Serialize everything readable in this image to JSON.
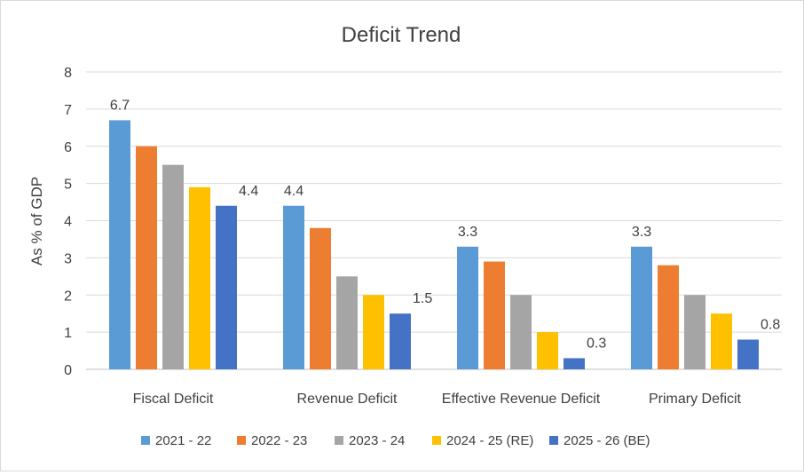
{
  "chart_data": {
    "type": "bar",
    "title": "Deficit Trend",
    "xlabel": "",
    "ylabel": "As % of GDP",
    "ylim": [
      0,
      8
    ],
    "yticks": [
      "0",
      "1",
      "2",
      "3",
      "4",
      "5",
      "6",
      "7",
      "8"
    ],
    "grid": true,
    "legend_position": "bottom",
    "categories": [
      "Fiscal Deficit",
      "Revenue Deficit",
      "Effective Revenue Deficit",
      "Primary Deficit"
    ],
    "series": [
      {
        "name": "2021 - 22",
        "color": "#5b9bd5",
        "values": [
          6.7,
          4.4,
          3.3,
          3.3
        ],
        "labels": [
          "6.7",
          "4.4",
          "3.3",
          "3.3"
        ]
      },
      {
        "name": "2022 - 23",
        "color": "#ed7d31",
        "values": [
          6.0,
          3.8,
          2.9,
          2.8
        ],
        "labels": [
          "",
          "",
          "",
          ""
        ]
      },
      {
        "name": "2023 - 24",
        "color": "#a5a5a5",
        "values": [
          5.5,
          2.5,
          2.0,
          2.0
        ],
        "labels": [
          "",
          "",
          "",
          ""
        ]
      },
      {
        "name": "2024 - 25 (RE)",
        "color": "#ffc000",
        "values": [
          4.9,
          2.0,
          1.0,
          1.5
        ],
        "labels": [
          "",
          "",
          "",
          ""
        ]
      },
      {
        "name": "2025 - 26 (BE)",
        "color": "#4472c4",
        "values": [
          4.4,
          1.5,
          0.3,
          0.8
        ],
        "labels": [
          "4.4",
          "1.5",
          "0.3",
          "0.8"
        ]
      }
    ]
  }
}
